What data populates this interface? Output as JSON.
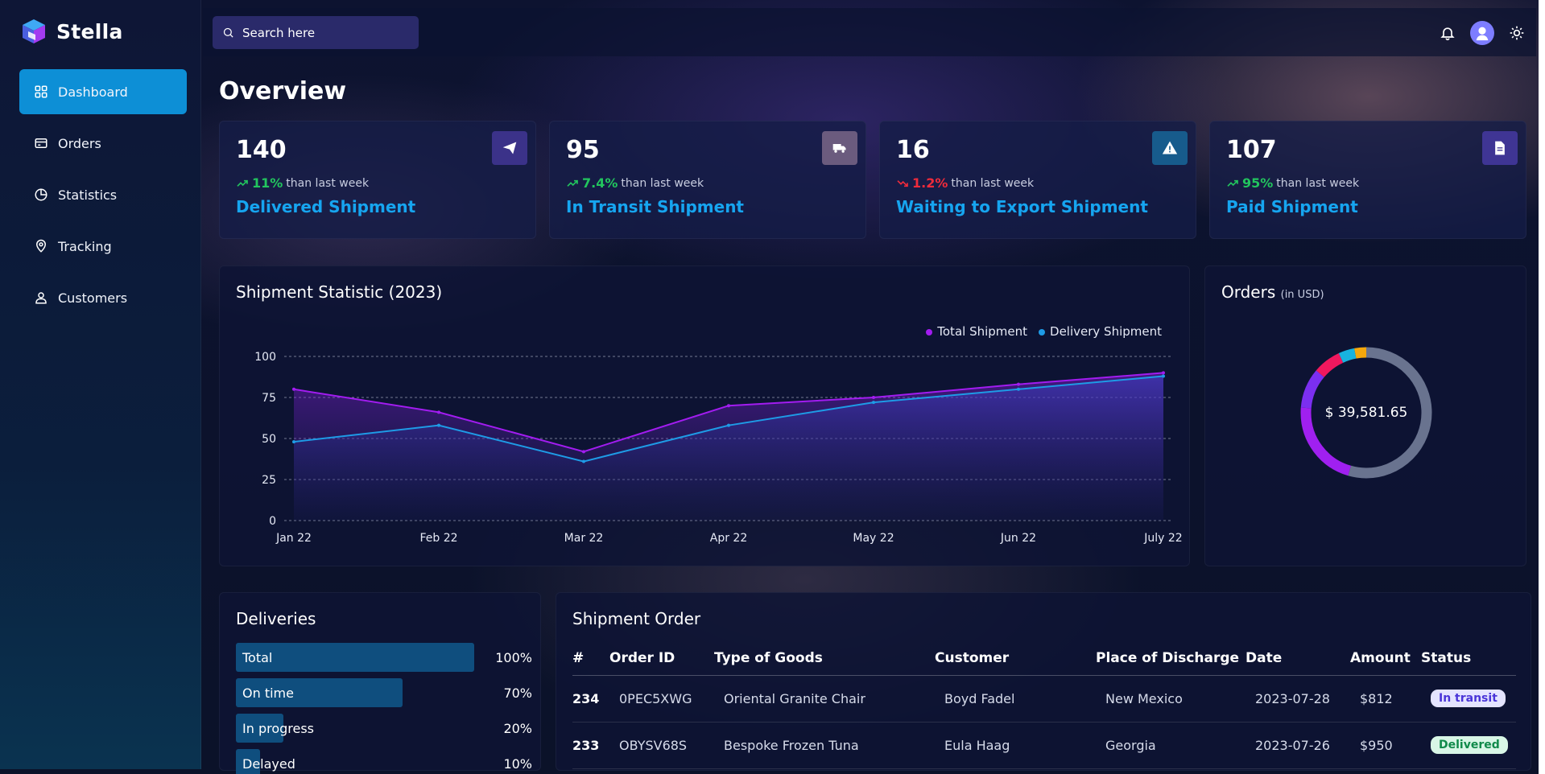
{
  "app": {
    "name": "Stella"
  },
  "sidebar": {
    "items": [
      {
        "label": "Dashboard",
        "icon": "grid-icon",
        "active": true
      },
      {
        "label": "Orders",
        "icon": "card-icon"
      },
      {
        "label": "Statistics",
        "icon": "pie-icon"
      },
      {
        "label": "Tracking",
        "icon": "location-pin-icon"
      },
      {
        "label": "Customers",
        "icon": "users-icon"
      }
    ]
  },
  "topbar": {
    "search_placeholder": "Search here"
  },
  "page": {
    "title": "Overview"
  },
  "kpis": [
    {
      "value": "140",
      "pct": "11%",
      "direction": "up",
      "suffix": "than last week",
      "label": "Delivered Shipment",
      "icon": "paper-plane-icon",
      "icon_bg": "#3b3289"
    },
    {
      "value": "95",
      "pct": "7.4%",
      "direction": "up",
      "suffix": "than last week",
      "label": "In Transit Shipment",
      "icon": "truck-icon",
      "icon_bg": "#6b5b7e"
    },
    {
      "value": "16",
      "pct": "1.2%",
      "direction": "down",
      "suffix": "than last week",
      "label": "Waiting to Export Shipment",
      "icon": "warning-icon",
      "icon_bg": "#175b8c"
    },
    {
      "value": "107",
      "pct": "95%",
      "direction": "up",
      "suffix": "than last week",
      "label": "Paid Shipment",
      "icon": "document-icon",
      "icon_bg": "#3f3594"
    }
  ],
  "shipment_chart": {
    "title": "Shipment Statistic (2023)",
    "chart_data": {
      "type": "area",
      "categories": [
        "Jan 22",
        "Feb 22",
        "Mar 22",
        "Apr 22",
        "May 22",
        "Jun 22",
        "July 22"
      ],
      "series": [
        {
          "name": "Total Shipment",
          "values": [
            80,
            66,
            42,
            70,
            75,
            83,
            90
          ],
          "color": "#a21cf0"
        },
        {
          "name": "Delivery Shipment",
          "values": [
            48,
            58,
            36,
            58,
            72,
            80,
            88
          ],
          "color": "#1e9be6"
        }
      ],
      "yticks": [
        0,
        25,
        50,
        75,
        100
      ],
      "ylim": [
        0,
        100
      ],
      "grid": true,
      "legend": "top-right"
    }
  },
  "orders_chart": {
    "title": "Orders",
    "subtitle": "(in USD)",
    "center_label": "$ 39,581.65",
    "chart_data": {
      "type": "pie",
      "values": [
        55,
        22,
        10,
        7,
        4,
        3
      ],
      "colors": [
        "#69738f",
        "#a020f0",
        "#7b2ff0",
        "#f0185e",
        "#18b3df",
        "#f5a70c"
      ]
    }
  },
  "deliveries": {
    "title": "Deliveries",
    "rows": [
      {
        "label": "Total",
        "pct": "100%",
        "value": 100
      },
      {
        "label": "On time",
        "pct": "70%",
        "value": 70
      },
      {
        "label": "In progress",
        "pct": "20%",
        "value": 20
      },
      {
        "label": "Delayed",
        "pct": "10%",
        "value": 10
      }
    ]
  },
  "shipment_order": {
    "title": "Shipment Order",
    "columns": [
      "#",
      "Order ID",
      "Type of Goods",
      "Customer",
      "Place of Discharge",
      "Date",
      "Amount",
      "Status"
    ],
    "rows": [
      {
        "num": "234",
        "order_id": "0PEC5XWG",
        "goods": "Oriental Granite Chair",
        "customer": "Boyd Fadel",
        "place": "New Mexico",
        "date": "2023-07-28",
        "amount": "$812",
        "status": "In transit",
        "status_bg": "#e4e4ff",
        "status_fg": "#4a35d8"
      },
      {
        "num": "233",
        "order_id": "OBYSV68S",
        "goods": "Bespoke Frozen Tuna",
        "customer": "Eula Haag",
        "place": "Georgia",
        "date": "2023-07-26",
        "amount": "$950",
        "status": "Delivered",
        "status_bg": "#d8f6e6",
        "status_fg": "#108a4a"
      }
    ]
  }
}
